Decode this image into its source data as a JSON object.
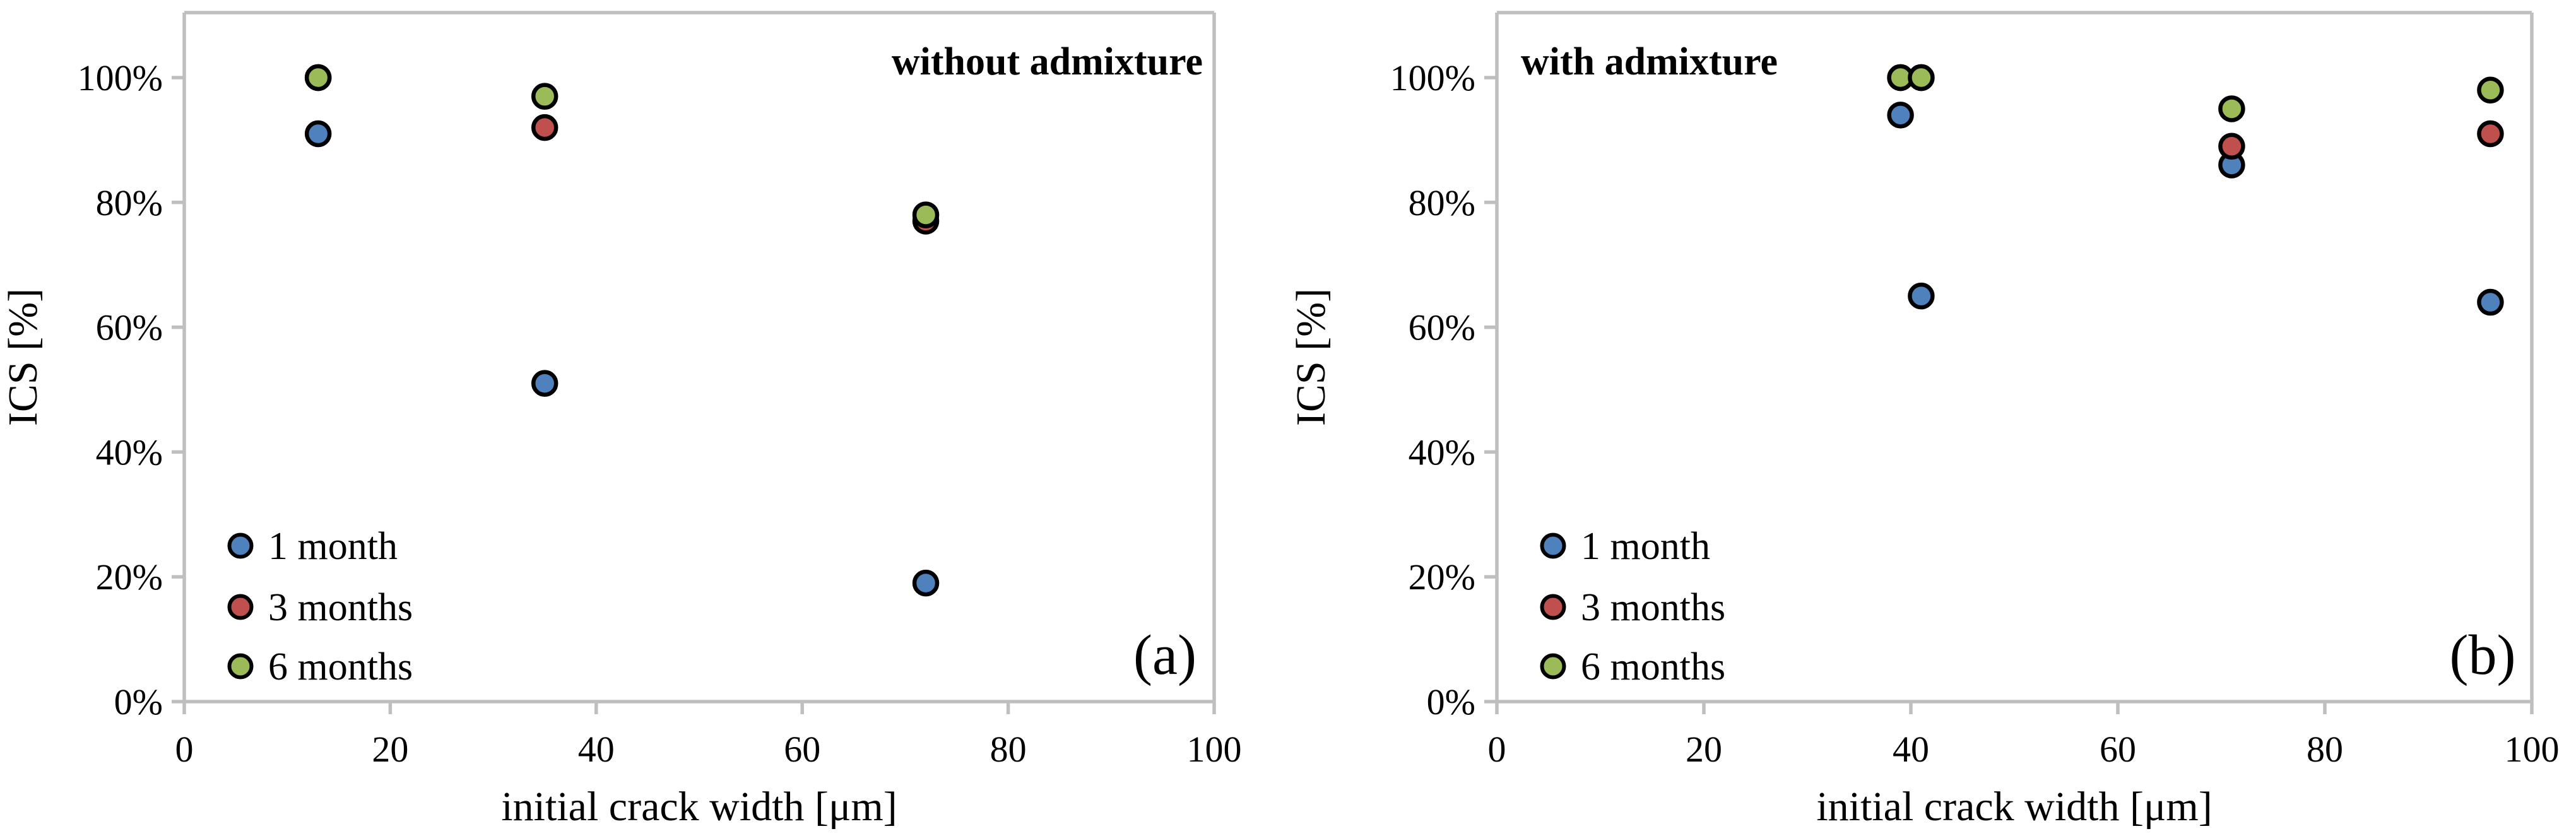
{
  "figure": {
    "background": "#FFFFFF",
    "text_color": "#000000",
    "axis_color": "#BFBFBF"
  },
  "chart_data": [
    {
      "type": "scatter",
      "panel_label": "(a)",
      "title": "without admixture",
      "title_align": "right",
      "xlabel": "initial crack width [μm]",
      "ylabel": "ICS [%]",
      "xlim": [
        0,
        100
      ],
      "ylim_percent": [
        0,
        110
      ],
      "grid": false,
      "legend_position": "lower-left",
      "xticks": [
        "0",
        "20",
        "40",
        "60",
        "80",
        "100"
      ],
      "yticks": [
        "0%",
        "20%",
        "40%",
        "60%",
        "80%",
        "100%"
      ],
      "series": [
        {
          "name": "1 month",
          "color": "#4F81BD",
          "points": [
            [
              13,
              91
            ],
            [
              35,
              51
            ],
            [
              72,
              19
            ]
          ]
        },
        {
          "name": "3 months",
          "color": "#C0504D",
          "points": [
            [
              13,
              100
            ],
            [
              35,
              92
            ],
            [
              72,
              77
            ]
          ]
        },
        {
          "name": "6 months",
          "color": "#9BBB59",
          "points": [
            [
              13,
              100
            ],
            [
              35,
              97
            ],
            [
              72,
              78
            ]
          ]
        }
      ]
    },
    {
      "type": "scatter",
      "panel_label": "(b)",
      "title": "with admixture",
      "title_align": "left",
      "xlabel": "initial crack width [μm]",
      "ylabel": "ICS [%]",
      "xlim": [
        0,
        100
      ],
      "ylim_percent": [
        0,
        110
      ],
      "grid": false,
      "legend_position": "lower-left",
      "xticks": [
        "0",
        "20",
        "40",
        "60",
        "80",
        "100"
      ],
      "yticks": [
        "0%",
        "20%",
        "40%",
        "60%",
        "80%",
        "100%"
      ],
      "series": [
        {
          "name": "1 month",
          "color": "#4F81BD",
          "points": [
            [
              39,
              94
            ],
            [
              41,
              65
            ],
            [
              71,
              86
            ],
            [
              96,
              64
            ]
          ]
        },
        {
          "name": "3 months",
          "color": "#C0504D",
          "points": [
            [
              39,
              100
            ],
            [
              41,
              100
            ],
            [
              71,
              89
            ],
            [
              96,
              91
            ]
          ]
        },
        {
          "name": "6 months",
          "color": "#9BBB59",
          "points": [
            [
              39,
              100
            ],
            [
              41,
              100
            ],
            [
              71,
              95
            ],
            [
              96,
              98
            ]
          ]
        }
      ]
    }
  ]
}
